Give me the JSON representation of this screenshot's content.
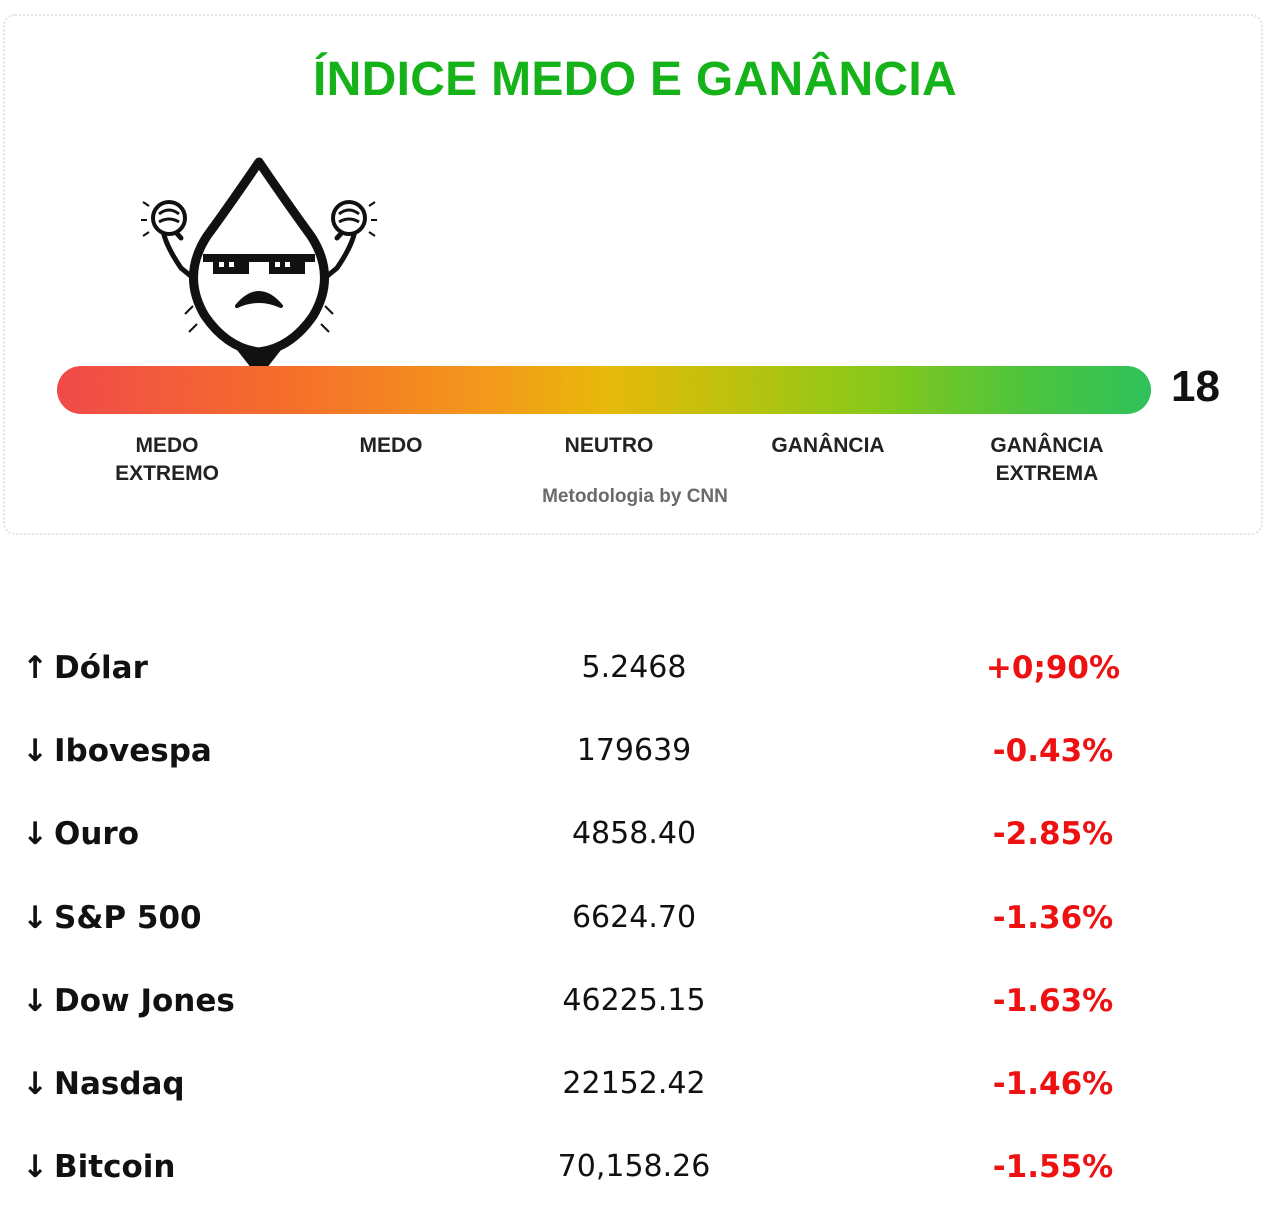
{
  "widget": {
    "title": "ÍNDICE MEDO E GANÂNCIA",
    "value": "18",
    "level": 18,
    "methodology": "Metodologia by CNN",
    "title_color": "#16b21a",
    "labels": [
      {
        "line1": "MEDO",
        "line2": "EXTREMO"
      },
      {
        "line1": "MEDO",
        "line2": ""
      },
      {
        "line1": "NEUTRO",
        "line2": ""
      },
      {
        "line1": "GANÂNCIA",
        "line2": ""
      },
      {
        "line1": "GANÂNCIA",
        "line2": "EXTREMA"
      }
    ],
    "mascot_icon": "fear-drop-mascot-icon"
  },
  "quotes": [
    {
      "arrow": "↑",
      "name": "Dólar",
      "value": "5.2468",
      "change": "+0;90%"
    },
    {
      "arrow": "↓",
      "name": "Ibovespa",
      "value": "179639",
      "change": "-0.43%"
    },
    {
      "arrow": "↓",
      "name": "Ouro",
      "value": "4858.40",
      "change": "-2.85%"
    },
    {
      "arrow": "↓",
      "name": "S&P 500",
      "value": "6624.70",
      "change": "-1.36%"
    },
    {
      "arrow": "↓",
      "name": "Dow Jones",
      "value": "46225.15",
      "change": "-1.63%"
    },
    {
      "arrow": "↓",
      "name": "Nasdaq",
      "value": "22152.42",
      "change": "-1.46%"
    },
    {
      "arrow": "↓",
      "name": "Bitcoin",
      "value": "70,158.26",
      "change": "-1.55%"
    }
  ],
  "colors": {
    "change_negative": "#ee1111",
    "change_positive": "#ee1111"
  }
}
